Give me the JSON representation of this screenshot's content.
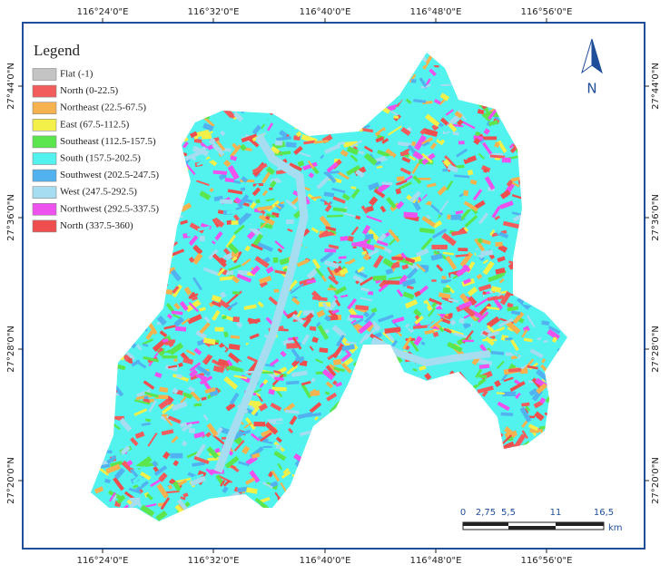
{
  "graticule": {
    "top": [
      "116°24'0\"E",
      "116°32'0\"E",
      "116°40'0\"E",
      "116°48'0\"E",
      "116°56'0\"E"
    ],
    "bottom": [
      "116°24'0\"E",
      "116°32'0\"E",
      "116°40'0\"E",
      "116°48'0\"E",
      "116°56'0\"E"
    ],
    "left": [
      "27°44'0\"N",
      "27°36'0\"N",
      "27°28'0\"N",
      "27°20'0\"N"
    ],
    "right": [
      "27°44'0\"N",
      "27°36'0\"N",
      "27°28'0\"N",
      "27°20'0\"N"
    ]
  },
  "legend": {
    "title": "Legend",
    "items": [
      {
        "label": "Flat (-1)",
        "color": "#c4c4c4"
      },
      {
        "label": "North (0-22.5)",
        "color": "#f25c5c"
      },
      {
        "label": "Northeast (22.5-67.5)",
        "color": "#f5b24e"
      },
      {
        "label": "East (67.5-112.5)",
        "color": "#f3f04a"
      },
      {
        "label": "Southeast (112.5-157.5)",
        "color": "#5ae64c"
      },
      {
        "label": "South (157.5-202.5)",
        "color": "#52f2ee"
      },
      {
        "label": "Southwest (202.5-247.5)",
        "color": "#52b2f0"
      },
      {
        "label": "West (247.5-292.5)",
        "color": "#a6ddf0"
      },
      {
        "label": "Northwest (292.5-337.5)",
        "color": "#ee52ee"
      },
      {
        "label": "North (337.5-360)",
        "color": "#ee4e4e"
      }
    ]
  },
  "north_arrow": {
    "label": "N"
  },
  "scale_bar": {
    "labels": [
      "0",
      "2,75",
      "5,5",
      "11",
      "16,5"
    ],
    "unit": "km"
  }
}
